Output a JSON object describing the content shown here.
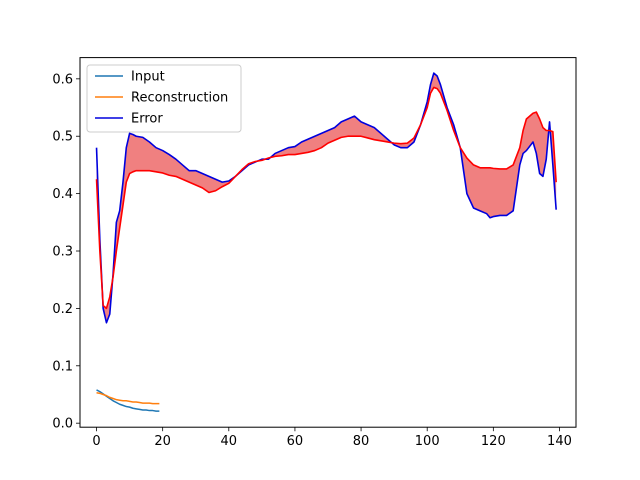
{
  "chart_data": {
    "type": "line",
    "title": "",
    "xlabel": "",
    "ylabel": "",
    "xlim": [
      -5,
      145
    ],
    "ylim": [
      -0.007,
      0.637
    ],
    "xticks": [
      0,
      20,
      40,
      60,
      80,
      100,
      120,
      140
    ],
    "yticks": [
      0.0,
      0.1,
      0.2,
      0.3,
      0.4,
      0.5,
      0.6
    ],
    "grid": false,
    "legend_position": "top-left",
    "legend": [
      "Input",
      "Reconstruction",
      "Error"
    ],
    "fill_color": "#f08080",
    "series": [
      {
        "name": "Input",
        "color": "#1f77b4",
        "x": [
          0,
          1,
          2,
          3,
          4,
          5,
          6,
          7,
          8,
          9,
          10,
          11,
          12,
          13,
          14,
          15,
          16,
          17,
          18,
          19
        ],
        "y": [
          0.058,
          0.055,
          0.051,
          0.047,
          0.043,
          0.039,
          0.036,
          0.033,
          0.031,
          0.029,
          0.028,
          0.026,
          0.025,
          0.024,
          0.023,
          0.023,
          0.022,
          0.022,
          0.021,
          0.021
        ]
      },
      {
        "name": "Reconstruction",
        "color": "#ff7f0e",
        "x": [
          0,
          1,
          2,
          3,
          4,
          5,
          6,
          7,
          8,
          9,
          10,
          11,
          12,
          13,
          14,
          15,
          16,
          17,
          18,
          19
        ],
        "y": [
          0.053,
          0.052,
          0.05,
          0.048,
          0.045,
          0.043,
          0.041,
          0.04,
          0.039,
          0.039,
          0.038,
          0.037,
          0.037,
          0.036,
          0.035,
          0.035,
          0.035,
          0.034,
          0.034,
          0.034
        ]
      },
      {
        "name": "Error",
        "color": "#0000dd",
        "x": [
          0,
          1,
          2,
          3,
          4,
          5,
          6,
          7,
          8,
          9,
          10,
          11,
          12,
          14,
          16,
          18,
          20,
          22,
          24,
          26,
          28,
          30,
          32,
          34,
          36,
          38,
          40,
          42,
          44,
          46,
          48,
          50,
          52,
          54,
          56,
          58,
          60,
          62,
          64,
          66,
          68,
          70,
          72,
          74,
          76,
          78,
          80,
          82,
          84,
          86,
          88,
          90,
          92,
          94,
          96,
          98,
          100,
          101,
          102,
          103,
          104,
          106,
          108,
          110,
          112,
          114,
          116,
          118,
          119,
          120,
          122,
          124,
          126,
          128,
          129,
          130,
          132,
          133,
          134,
          135,
          136,
          137,
          138,
          139
        ],
        "y": [
          0.48,
          0.32,
          0.2,
          0.175,
          0.19,
          0.26,
          0.35,
          0.37,
          0.42,
          0.48,
          0.505,
          0.503,
          0.5,
          0.498,
          0.49,
          0.48,
          0.475,
          0.468,
          0.46,
          0.45,
          0.44,
          0.44,
          0.435,
          0.43,
          0.425,
          0.42,
          0.422,
          0.43,
          0.44,
          0.45,
          0.455,
          0.46,
          0.46,
          0.47,
          0.475,
          0.48,
          0.482,
          0.49,
          0.495,
          0.5,
          0.505,
          0.51,
          0.515,
          0.525,
          0.53,
          0.535,
          0.525,
          0.52,
          0.515,
          0.505,
          0.495,
          0.485,
          0.48,
          0.48,
          0.49,
          0.52,
          0.56,
          0.59,
          0.61,
          0.605,
          0.59,
          0.55,
          0.52,
          0.48,
          0.4,
          0.375,
          0.37,
          0.365,
          0.358,
          0.36,
          0.362,
          0.362,
          0.37,
          0.45,
          0.47,
          0.475,
          0.49,
          0.47,
          0.435,
          0.43,
          0.46,
          0.525,
          0.45,
          0.372
        ]
      },
      {
        "name": "",
        "color": "#ff0000",
        "x": [
          0,
          1,
          2,
          3,
          4,
          5,
          6,
          7,
          8,
          9,
          10,
          11,
          12,
          14,
          16,
          18,
          20,
          22,
          24,
          26,
          28,
          30,
          32,
          34,
          36,
          38,
          40,
          42,
          44,
          46,
          48,
          50,
          52,
          54,
          56,
          58,
          60,
          62,
          64,
          66,
          68,
          70,
          72,
          74,
          76,
          78,
          80,
          82,
          84,
          86,
          88,
          90,
          92,
          94,
          96,
          98,
          100,
          101,
          102,
          103,
          104,
          106,
          108,
          110,
          112,
          114,
          116,
          118,
          119,
          120,
          122,
          124,
          126,
          128,
          129,
          130,
          132,
          133,
          134,
          135,
          136,
          137,
          138,
          139
        ],
        "y": [
          0.425,
          0.3,
          0.205,
          0.2,
          0.22,
          0.255,
          0.3,
          0.34,
          0.38,
          0.42,
          0.435,
          0.438,
          0.44,
          0.44,
          0.44,
          0.438,
          0.436,
          0.432,
          0.43,
          0.425,
          0.42,
          0.415,
          0.41,
          0.402,
          0.405,
          0.412,
          0.418,
          0.43,
          0.442,
          0.452,
          0.456,
          0.458,
          0.462,
          0.465,
          0.466,
          0.468,
          0.468,
          0.47,
          0.472,
          0.475,
          0.48,
          0.488,
          0.493,
          0.498,
          0.5,
          0.5,
          0.5,
          0.497,
          0.494,
          0.492,
          0.49,
          0.488,
          0.487,
          0.488,
          0.497,
          0.52,
          0.55,
          0.575,
          0.585,
          0.583,
          0.575,
          0.545,
          0.51,
          0.48,
          0.462,
          0.45,
          0.445,
          0.445,
          0.445,
          0.444,
          0.443,
          0.443,
          0.45,
          0.48,
          0.51,
          0.53,
          0.54,
          0.542,
          0.53,
          0.515,
          0.51,
          0.51,
          0.508,
          0.42
        ]
      }
    ]
  }
}
